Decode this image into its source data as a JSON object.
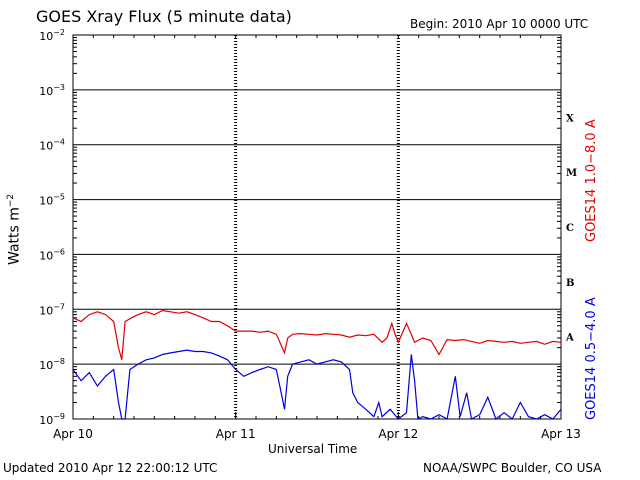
{
  "header": {
    "title": "GOES Xray Flux (5 minute data)",
    "begin": "Begin:  2010 Apr 10 0000 UTC"
  },
  "footer": {
    "updated": "Updated 2010 Apr 12 22:00:12 UTC",
    "credit": "NOAA/SWPC Boulder, CO USA"
  },
  "axes": {
    "ylabel_main": "Watts m",
    "ylabel_exp": "−2",
    "xlabel": "Universal Time",
    "right_labels": {
      "red": "GOES14 1.0−8.0 A",
      "blue": "GOES14 0.5−4.0 A"
    }
  },
  "chart_data": {
    "type": "line",
    "y_scale": "log",
    "ylim": [
      1e-09,
      0.01
    ],
    "xlim_days": [
      0,
      3
    ],
    "yticks": [
      {
        "value": 0.01,
        "label": "10",
        "exp": "−2"
      },
      {
        "value": 0.001,
        "label": "10",
        "exp": "−3"
      },
      {
        "value": 0.0001,
        "label": "10",
        "exp": "−4"
      },
      {
        "value": 1e-05,
        "label": "10",
        "exp": "−5"
      },
      {
        "value": 1e-06,
        "label": "10",
        "exp": "−6"
      },
      {
        "value": 1e-07,
        "label": "10",
        "exp": "−7"
      },
      {
        "value": 1e-08,
        "label": "10",
        "exp": "−8"
      },
      {
        "value": 1e-09,
        "label": "10",
        "exp": "−9"
      }
    ],
    "xticks": [
      "Apr 10",
      "Apr 11",
      "Apr 12",
      "Apr 13"
    ],
    "flare_classes": [
      {
        "label": "X",
        "value": 0.000316
      },
      {
        "label": "M",
        "value": 3.16e-05
      },
      {
        "label": "C",
        "value": 3.16e-06
      },
      {
        "label": "B",
        "value": 3.16e-07
      },
      {
        "label": "A",
        "value": 3.16e-08
      }
    ],
    "grid": true,
    "series": [
      {
        "name": "GOES14 1.0−8.0 A",
        "color": "#e00000",
        "points": [
          [
            0.0,
            7e-08
          ],
          [
            0.05,
            6e-08
          ],
          [
            0.1,
            8e-08
          ],
          [
            0.15,
            9e-08
          ],
          [
            0.2,
            8e-08
          ],
          [
            0.25,
            6e-08
          ],
          [
            0.28,
            2e-08
          ],
          [
            0.3,
            1.2e-08
          ],
          [
            0.32,
            6e-08
          ],
          [
            0.36,
            7e-08
          ],
          [
            0.4,
            8e-08
          ],
          [
            0.45,
            9e-08
          ],
          [
            0.5,
            8e-08
          ],
          [
            0.55,
            9.5e-08
          ],
          [
            0.6,
            9e-08
          ],
          [
            0.65,
            8.5e-08
          ],
          [
            0.7,
            9e-08
          ],
          [
            0.75,
            8e-08
          ],
          [
            0.8,
            7e-08
          ],
          [
            0.85,
            6e-08
          ],
          [
            0.9,
            6e-08
          ],
          [
            0.95,
            5e-08
          ],
          [
            1.0,
            4e-08
          ],
          [
            1.05,
            4e-08
          ],
          [
            1.1,
            4e-08
          ],
          [
            1.15,
            3.8e-08
          ],
          [
            1.2,
            4e-08
          ],
          [
            1.25,
            3.5e-08
          ],
          [
            1.28,
            2.2e-08
          ],
          [
            1.3,
            1.6e-08
          ],
          [
            1.32,
            3e-08
          ],
          [
            1.35,
            3.5e-08
          ],
          [
            1.4,
            3.6e-08
          ],
          [
            1.45,
            3.5e-08
          ],
          [
            1.5,
            3.4e-08
          ],
          [
            1.55,
            3.6e-08
          ],
          [
            1.6,
            3.5e-08
          ],
          [
            1.65,
            3.4e-08
          ],
          [
            1.7,
            3.1e-08
          ],
          [
            1.75,
            3.4e-08
          ],
          [
            1.8,
            3.3e-08
          ],
          [
            1.85,
            3.5e-08
          ],
          [
            1.9,
            2.5e-08
          ],
          [
            1.93,
            3e-08
          ],
          [
            1.96,
            5.5e-08
          ],
          [
            1.98,
            3.5e-08
          ],
          [
            2.0,
            2.5e-08
          ],
          [
            2.05,
            5.5e-08
          ],
          [
            2.08,
            3.5e-08
          ],
          [
            2.1,
            2.5e-08
          ],
          [
            2.15,
            3e-08
          ],
          [
            2.2,
            2.7e-08
          ],
          [
            2.25,
            1.5e-08
          ],
          [
            2.3,
            2.8e-08
          ],
          [
            2.35,
            2.7e-08
          ],
          [
            2.4,
            2.8e-08
          ],
          [
            2.45,
            2.6e-08
          ],
          [
            2.5,
            2.4e-08
          ],
          [
            2.55,
            2.7e-08
          ],
          [
            2.6,
            2.6e-08
          ],
          [
            2.65,
            2.5e-08
          ],
          [
            2.7,
            2.6e-08
          ],
          [
            2.75,
            2.4e-08
          ],
          [
            2.8,
            2.5e-08
          ],
          [
            2.85,
            2.6e-08
          ],
          [
            2.9,
            2.3e-08
          ],
          [
            2.95,
            2.6e-08
          ],
          [
            3.0,
            2.5e-08
          ]
        ]
      },
      {
        "name": "GOES14 0.5−4.0 A",
        "color": "#0000e0",
        "points": [
          [
            0.0,
            8e-09
          ],
          [
            0.05,
            5e-09
          ],
          [
            0.1,
            7e-09
          ],
          [
            0.15,
            4e-09
          ],
          [
            0.2,
            6e-09
          ],
          [
            0.25,
            8e-09
          ],
          [
            0.28,
            2e-09
          ],
          [
            0.3,
            1e-09
          ],
          [
            0.32,
            1e-09
          ],
          [
            0.35,
            8e-09
          ],
          [
            0.4,
            1e-08
          ],
          [
            0.45,
            1.2e-08
          ],
          [
            0.5,
            1.3e-08
          ],
          [
            0.55,
            1.5e-08
          ],
          [
            0.6,
            1.6e-08
          ],
          [
            0.65,
            1.7e-08
          ],
          [
            0.7,
            1.8e-08
          ],
          [
            0.75,
            1.7e-08
          ],
          [
            0.8,
            1.7e-08
          ],
          [
            0.85,
            1.6e-08
          ],
          [
            0.9,
            1.4e-08
          ],
          [
            0.95,
            1.2e-08
          ],
          [
            1.0,
            8e-09
          ],
          [
            1.05,
            6e-09
          ],
          [
            1.1,
            7e-09
          ],
          [
            1.15,
            8e-09
          ],
          [
            1.2,
            9e-09
          ],
          [
            1.25,
            8e-09
          ],
          [
            1.28,
            3e-09
          ],
          [
            1.3,
            1.5e-09
          ],
          [
            1.32,
            6e-09
          ],
          [
            1.35,
            1e-08
          ],
          [
            1.4,
            1.1e-08
          ],
          [
            1.45,
            1.2e-08
          ],
          [
            1.5,
            1e-08
          ],
          [
            1.55,
            1.1e-08
          ],
          [
            1.6,
            1.2e-08
          ],
          [
            1.65,
            1.1e-08
          ],
          [
            1.7,
            8e-09
          ],
          [
            1.72,
            3e-09
          ],
          [
            1.75,
            2e-09
          ],
          [
            1.8,
            1.5e-09
          ],
          [
            1.85,
            1.1e-09
          ],
          [
            1.88,
            2e-09
          ],
          [
            1.9,
            1.1e-09
          ],
          [
            1.95,
            1.5e-09
          ],
          [
            2.0,
            1e-09
          ],
          [
            2.05,
            1.3e-09
          ],
          [
            2.08,
            1.5e-08
          ],
          [
            2.1,
            5e-09
          ],
          [
            2.12,
            1e-09
          ],
          [
            2.15,
            1.1e-09
          ],
          [
            2.2,
            1e-09
          ],
          [
            2.25,
            1.2e-09
          ],
          [
            2.3,
            1e-09
          ],
          [
            2.35,
            6e-09
          ],
          [
            2.38,
            1.1e-09
          ],
          [
            2.42,
            3e-09
          ],
          [
            2.45,
            1e-09
          ],
          [
            2.5,
            1.2e-09
          ],
          [
            2.55,
            2.5e-09
          ],
          [
            2.6,
            1e-09
          ],
          [
            2.65,
            1.3e-09
          ],
          [
            2.7,
            1e-09
          ],
          [
            2.75,
            2e-09
          ],
          [
            2.8,
            1.1e-09
          ],
          [
            2.85,
            1e-09
          ],
          [
            2.9,
            1.2e-09
          ],
          [
            2.95,
            1e-09
          ],
          [
            3.0,
            1.5e-09
          ]
        ]
      }
    ]
  }
}
